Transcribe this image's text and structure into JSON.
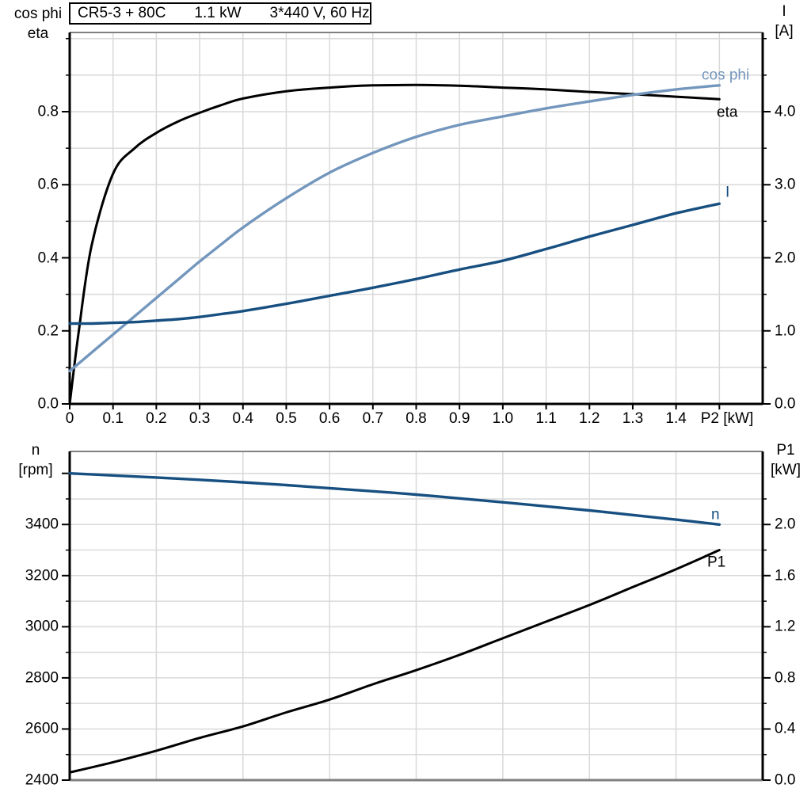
{
  "colors": {
    "black": "#000000",
    "light_blue": "#7396BD",
    "dark_blue": "#174F80",
    "grid": "#D9D9D9",
    "border": "#808080",
    "background": "#FFFFFF"
  },
  "title_box": {
    "model": "CR5-3 + 80C",
    "power": "1.1 kW",
    "supply": "3*440 V, 60 Hz"
  },
  "chart_data": [
    {
      "type": "line",
      "title": "CR5-3 + 80C 1.1 kW 3*440 V, 60 Hz",
      "x_label": "P2 [kW]",
      "xlim": [
        0,
        1.6
      ],
      "grid": true,
      "x_tick_labels": [
        "0",
        "0.1",
        "0.2",
        "0.3",
        "0.4",
        "0.5",
        "0.6",
        "0.7",
        "0.8",
        "0.9",
        "1.0",
        "1.1",
        "1.2",
        "1.3",
        "1.4"
      ],
      "left_axis": {
        "title": [
          "cos phi",
          "eta"
        ],
        "tick_labels": [
          "0.0",
          "0.2",
          "0.4",
          "0.6",
          "0.8"
        ],
        "minor_ticks": [
          0.1,
          0.3,
          0.5,
          0.7,
          0.9,
          1.0
        ],
        "range": [
          0,
          1.017
        ],
        "gridline_step": 0.1
      },
      "right_axis": {
        "title": [
          "I",
          "[A]"
        ],
        "tick_labels": [
          "0.0",
          "1.0",
          "2.0",
          "3.0",
          "4.0"
        ],
        "minor_ticks": [
          0.5,
          1.5,
          2.5,
          3.5,
          4.5,
          5.0
        ],
        "range": [
          0,
          5.084
        ]
      },
      "x": [
        0,
        0.02,
        0.05,
        0.1,
        0.15,
        0.2,
        0.25,
        0.3,
        0.35,
        0.4,
        0.5,
        0.6,
        0.7,
        0.8,
        0.9,
        1.0,
        1.1,
        1.2,
        1.3,
        1.4,
        1.5
      ],
      "series": [
        {
          "name": "eta",
          "unit": "-",
          "axis": "left",
          "color": "black",
          "values": [
            0,
            0.19,
            0.43,
            0.63,
            0.7,
            0.742,
            0.773,
            0.797,
            0.818,
            0.836,
            0.856,
            0.866,
            0.872,
            0.873,
            0.871,
            0.866,
            0.861,
            0.854,
            0.848,
            0.841,
            0.834
          ]
        },
        {
          "name": "cos phi",
          "unit": "-",
          "axis": "left",
          "color": "light_blue",
          "values": [
            0.09,
            0.11,
            0.14,
            0.19,
            0.24,
            0.29,
            0.34,
            0.39,
            0.437,
            0.483,
            0.563,
            0.633,
            0.687,
            0.731,
            0.764,
            0.787,
            0.809,
            0.828,
            0.846,
            0.861,
            0.872
          ]
        },
        {
          "name": "I",
          "unit": "A",
          "axis": "right",
          "color": "dark_blue",
          "values": [
            1.1,
            1.1,
            1.1,
            1.11,
            1.12,
            1.14,
            1.16,
            1.19,
            1.23,
            1.27,
            1.37,
            1.48,
            1.59,
            1.71,
            1.84,
            1.96,
            2.12,
            2.29,
            2.45,
            2.61,
            2.74
          ]
        }
      ]
    },
    {
      "type": "line",
      "x_label": "",
      "xlim": [
        0,
        1.6
      ],
      "grid": true,
      "x_tick_labels": [],
      "left_axis": {
        "title": [
          "n",
          "[rpm]"
        ],
        "tick_labels": [
          "2400",
          "2600",
          "2800",
          "3000",
          "3200",
          "3400"
        ],
        "extra_major_ticks": [
          3600
        ],
        "minor_ticks": [
          2500,
          2700,
          2900,
          3100,
          3300,
          3500
        ],
        "range": [
          2400,
          3686
        ],
        "gridline_step": 100
      },
      "right_axis": {
        "title": [
          "P1",
          "[kW]"
        ],
        "tick_labels": [
          "0.0",
          "0.4",
          "0.8",
          "1.2",
          "1.6",
          "2.0"
        ],
        "minor_ticks": [
          0.2,
          0.6,
          1.0,
          1.4,
          1.8,
          2.2
        ],
        "range": [
          0,
          2.572
        ]
      },
      "x": [
        0,
        0.1,
        0.2,
        0.3,
        0.4,
        0.5,
        0.6,
        0.7,
        0.8,
        0.9,
        1.0,
        1.1,
        1.2,
        1.3,
        1.4,
        1.5
      ],
      "series": [
        {
          "name": "n",
          "unit": "rpm",
          "axis": "left",
          "color": "dark_blue",
          "values": [
            3600,
            3592,
            3584,
            3575,
            3565,
            3554,
            3542,
            3530,
            3517,
            3502,
            3487,
            3471,
            3455,
            3437,
            3419,
            3400
          ]
        },
        {
          "name": "P1",
          "unit": "kW",
          "axis": "right",
          "color": "black",
          "values": [
            0.06,
            0.14,
            0.23,
            0.33,
            0.42,
            0.53,
            0.63,
            0.75,
            0.86,
            0.98,
            1.11,
            1.24,
            1.37,
            1.51,
            1.65,
            1.8
          ]
        }
      ]
    }
  ]
}
